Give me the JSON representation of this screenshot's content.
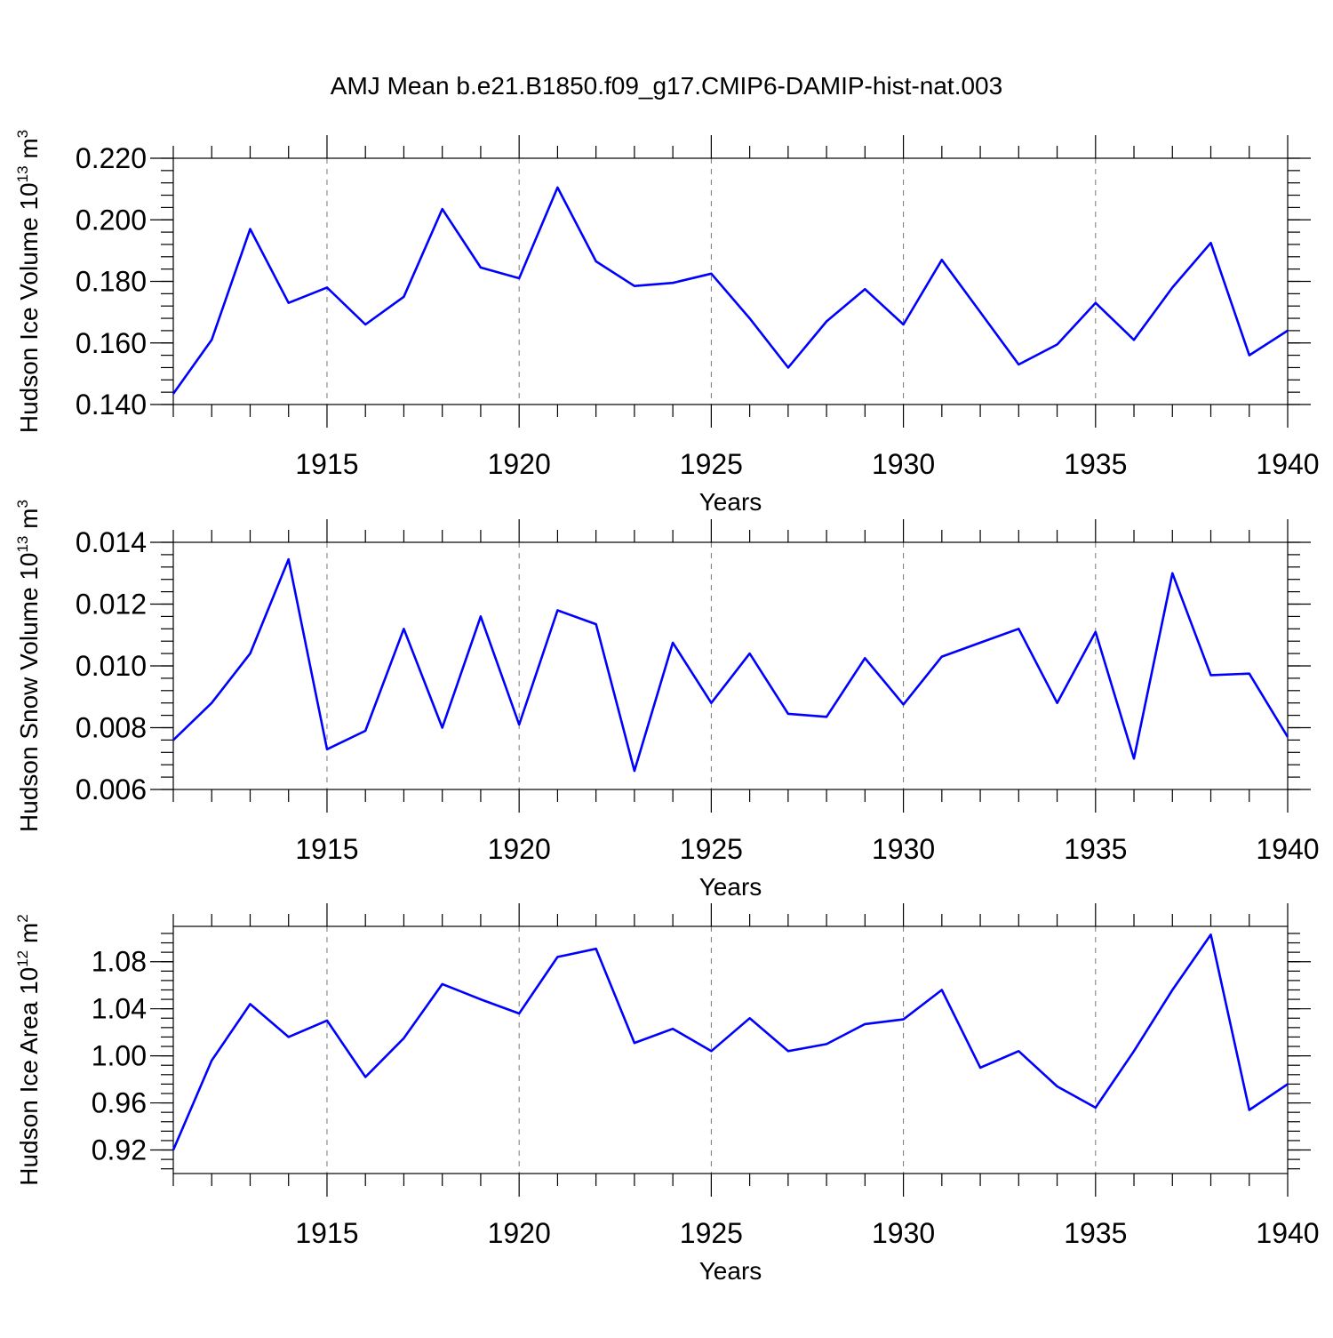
{
  "title": "AMJ Mean b.e21.B1850.f09_g17.CMIP6-DAMIP-hist-nat.003",
  "colors": {
    "line": "#0000ff",
    "grid": "#777777",
    "frame": "#000000"
  },
  "chart_data": [
    {
      "type": "line",
      "id": "ice-volume",
      "ylabel": {
        "main": "Hudson Ice Volume 10",
        "sup1": "13",
        "mid": " m",
        "sup2": "3"
      },
      "xlabel": "Years",
      "xlim": [
        1911,
        1940
      ],
      "ylim": [
        0.14,
        0.22
      ],
      "yticks": [
        0.14,
        0.16,
        0.18,
        0.2,
        0.22
      ],
      "ytick_labels": [
        "0.140",
        "0.160",
        "0.180",
        "0.200",
        "0.220"
      ],
      "yminor_step": 0.004,
      "xticks": [
        1915,
        1920,
        1925,
        1930,
        1935,
        1940
      ],
      "xtick_labels": [
        "1915",
        "1920",
        "1925",
        "1930",
        "1935",
        "1940"
      ],
      "grid": "vertical dashed at major x ticks",
      "x": [
        1911,
        1912,
        1913,
        1914,
        1915,
        1916,
        1917,
        1918,
        1919,
        1920,
        1921,
        1922,
        1923,
        1924,
        1925,
        1926,
        1927,
        1928,
        1929,
        1930,
        1931,
        1932,
        1933,
        1934,
        1935,
        1936,
        1937,
        1938,
        1939,
        1940
      ],
      "series": [
        {
          "values": [
            0.1435,
            0.161,
            0.197,
            0.173,
            0.178,
            0.166,
            0.175,
            0.2035,
            0.1845,
            0.181,
            0.2105,
            0.1865,
            0.1785,
            0.1795,
            0.1825,
            0.168,
            0.152,
            0.167,
            0.1775,
            0.166,
            0.187,
            0.17,
            0.153,
            0.1595,
            0.173,
            0.161,
            0.178,
            0.1925,
            0.156,
            0.164
          ]
        }
      ]
    },
    {
      "type": "line",
      "id": "snow-volume",
      "ylabel": {
        "main": "Hudson Snow Volume 10",
        "sup1": "13",
        "mid": " m",
        "sup2": "3"
      },
      "xlabel": "Years",
      "xlim": [
        1911,
        1940
      ],
      "ylim": [
        0.006,
        0.014
      ],
      "yticks": [
        0.006,
        0.008,
        0.01,
        0.012,
        0.014
      ],
      "ytick_labels": [
        "0.006",
        "0.008",
        "0.010",
        "0.012",
        "0.014"
      ],
      "yminor_step": 0.0004,
      "xticks": [
        1915,
        1920,
        1925,
        1930,
        1935,
        1940
      ],
      "xtick_labels": [
        "1915",
        "1920",
        "1925",
        "1930",
        "1935",
        "1940"
      ],
      "grid": "vertical dashed at major x ticks",
      "x": [
        1911,
        1912,
        1913,
        1914,
        1915,
        1916,
        1917,
        1918,
        1919,
        1920,
        1921,
        1922,
        1923,
        1924,
        1925,
        1926,
        1927,
        1928,
        1929,
        1930,
        1931,
        1932,
        1933,
        1934,
        1935,
        1936,
        1937,
        1938,
        1939,
        1940
      ],
      "series": [
        {
          "values": [
            0.0076,
            0.0088,
            0.0104,
            0.01345,
            0.0073,
            0.0079,
            0.0112,
            0.008,
            0.0116,
            0.0081,
            0.0118,
            0.01135,
            0.0066,
            0.01075,
            0.0088,
            0.0104,
            0.00845,
            0.00835,
            0.01025,
            0.00875,
            0.0103,
            0.01075,
            0.0112,
            0.0088,
            0.0111,
            0.007,
            0.013,
            0.0097,
            0.00975,
            0.0077
          ]
        }
      ]
    },
    {
      "type": "line",
      "id": "ice-area",
      "ylabel": {
        "main": "Hudson Ice Area 10",
        "sup1": "12",
        "mid": " m",
        "sup2": "2"
      },
      "xlabel": "Years",
      "xlim": [
        1911,
        1940
      ],
      "ylim": [
        0.9,
        1.11
      ],
      "yticks": [
        0.92,
        0.96,
        1.0,
        1.04,
        1.08
      ],
      "ytick_labels": [
        "0.92",
        "0.96",
        "1.00",
        "1.04",
        "1.08"
      ],
      "yminor_step": 0.008,
      "xticks": [
        1915,
        1920,
        1925,
        1930,
        1935,
        1940
      ],
      "xtick_labels": [
        "1915",
        "1920",
        "1925",
        "1930",
        "1935",
        "1940"
      ],
      "grid": "vertical dashed at major x ticks",
      "x": [
        1911,
        1912,
        1913,
        1914,
        1915,
        1916,
        1917,
        1918,
        1919,
        1920,
        1921,
        1922,
        1923,
        1924,
        1925,
        1926,
        1927,
        1928,
        1929,
        1930,
        1931,
        1932,
        1933,
        1934,
        1935,
        1936,
        1937,
        1938,
        1939,
        1940
      ],
      "series": [
        {
          "values": [
            0.92,
            0.996,
            1.044,
            1.016,
            1.03,
            0.982,
            1.015,
            1.061,
            1.048,
            1.036,
            1.084,
            1.091,
            1.011,
            1.023,
            1.004,
            1.032,
            1.004,
            1.01,
            1.027,
            1.031,
            1.056,
            0.99,
            1.004,
            0.974,
            0.956,
            1.004,
            1.056,
            1.103,
            0.954,
            0.976
          ]
        }
      ]
    }
  ]
}
